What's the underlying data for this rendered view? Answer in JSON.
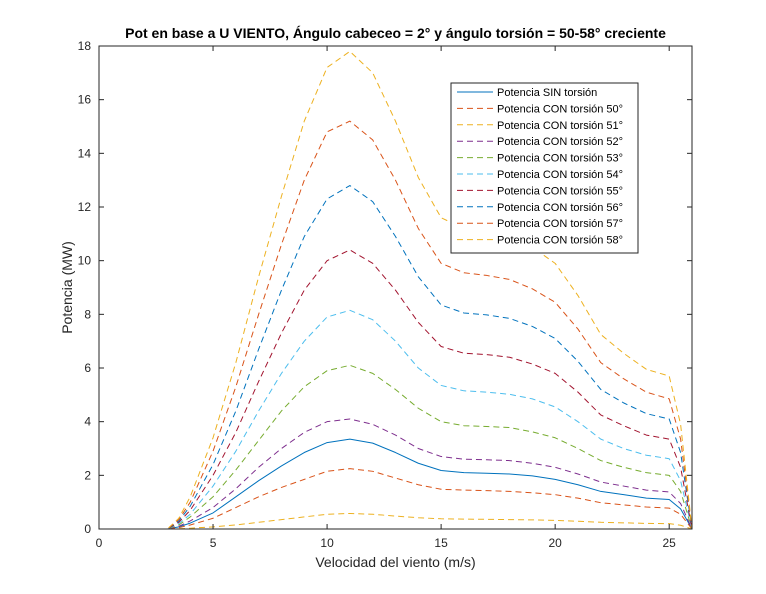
{
  "chart_data": {
    "type": "line",
    "title": "Pot en base a U VIENTO, Ángulo cabeceo = 2° y ángulo torsión = 50-58° creciente",
    "xlabel": "Velocidad del viento (m/s)",
    "ylabel": "Potencia (MW)",
    "xlim": [
      0,
      26
    ],
    "ylim": [
      0,
      18
    ],
    "xticks": [
      0,
      5,
      10,
      15,
      20,
      25
    ],
    "yticks": [
      0,
      2,
      4,
      6,
      8,
      10,
      12,
      14,
      16,
      18
    ],
    "grid": false,
    "legend_position": "top-right",
    "x": [
      0,
      1,
      2,
      3,
      3.5,
      4,
      5,
      6,
      7,
      8,
      9,
      10,
      11,
      12,
      13,
      14,
      15,
      16,
      17,
      18,
      19,
      20,
      21,
      22,
      23,
      24,
      25,
      25.5,
      26
    ],
    "series": [
      {
        "name": "Potencia SIN torsión",
        "color": "#0072BD",
        "dash": "solid",
        "values": [
          0,
          0,
          0,
          0,
          0.08,
          0.22,
          0.6,
          1.2,
          1.8,
          2.35,
          2.85,
          3.22,
          3.35,
          3.2,
          2.85,
          2.45,
          2.18,
          2.1,
          2.08,
          2.05,
          1.98,
          1.85,
          1.65,
          1.4,
          1.28,
          1.15,
          1.1,
          0.75,
          0
        ]
      },
      {
        "name": "Potencia CON torsión 50°",
        "color": "#D95319",
        "dash": "dashed",
        "values": [
          0,
          0,
          0,
          0,
          0.05,
          0.15,
          0.4,
          0.8,
          1.2,
          1.55,
          1.85,
          2.15,
          2.25,
          2.15,
          1.9,
          1.65,
          1.48,
          1.45,
          1.43,
          1.4,
          1.35,
          1.28,
          1.15,
          0.98,
          0.9,
          0.82,
          0.78,
          0.55,
          0
        ]
      },
      {
        "name": "Potencia CON torsión 51°",
        "color": "#EDB120",
        "dash": "dashed",
        "values": [
          0,
          0,
          0,
          0,
          0.01,
          0.03,
          0.08,
          0.15,
          0.25,
          0.35,
          0.45,
          0.55,
          0.58,
          0.55,
          0.48,
          0.42,
          0.38,
          0.37,
          0.36,
          0.35,
          0.34,
          0.32,
          0.29,
          0.25,
          0.23,
          0.21,
          0.2,
          0.14,
          0
        ]
      },
      {
        "name": "Potencia CON torsión 52°",
        "color": "#7E2F8E",
        "dash": "dashed",
        "values": [
          0,
          0,
          0,
          0,
          0.1,
          0.3,
          0.8,
          1.5,
          2.3,
          3.0,
          3.6,
          4.0,
          4.1,
          3.9,
          3.5,
          3.0,
          2.7,
          2.6,
          2.58,
          2.55,
          2.45,
          2.3,
          2.05,
          1.75,
          1.6,
          1.45,
          1.38,
          0.95,
          0
        ]
      },
      {
        "name": "Potencia CON torsión 53°",
        "color": "#77AC30",
        "dash": "dashed",
        "values": [
          0,
          0,
          0,
          0,
          0.15,
          0.45,
          1.2,
          2.2,
          3.3,
          4.4,
          5.3,
          5.9,
          6.1,
          5.8,
          5.2,
          4.5,
          4.0,
          3.85,
          3.82,
          3.78,
          3.62,
          3.4,
          3.0,
          2.55,
          2.3,
          2.1,
          2.0,
          1.4,
          0
        ]
      },
      {
        "name": "Potencia CON torsión 54°",
        "color": "#4DBEEE",
        "dash": "dashed",
        "values": [
          0,
          0,
          0,
          0,
          0.2,
          0.55,
          1.6,
          2.9,
          4.4,
          5.8,
          7.0,
          7.9,
          8.15,
          7.8,
          7.0,
          6.0,
          5.35,
          5.15,
          5.1,
          5.02,
          4.85,
          4.55,
          4.0,
          3.35,
          3.0,
          2.75,
          2.62,
          1.8,
          0
        ]
      },
      {
        "name": "Potencia CON torsión 55°",
        "color": "#A2142F",
        "dash": "dashed",
        "values": [
          0,
          0,
          0,
          0,
          0.25,
          0.7,
          2.0,
          3.6,
          5.5,
          7.3,
          8.9,
          10.0,
          10.4,
          9.9,
          8.9,
          7.7,
          6.8,
          6.55,
          6.5,
          6.4,
          6.15,
          5.8,
          5.1,
          4.25,
          3.85,
          3.5,
          3.35,
          2.3,
          0
        ]
      },
      {
        "name": "Potencia CON torsión 56°",
        "color": "#0072BD",
        "dash": "dashed",
        "values": [
          0,
          0,
          0,
          0,
          0.3,
          0.85,
          2.4,
          4.4,
          6.7,
          8.9,
          10.9,
          12.3,
          12.8,
          12.2,
          10.9,
          9.4,
          8.35,
          8.05,
          7.98,
          7.85,
          7.55,
          7.1,
          6.25,
          5.2,
          4.7,
          4.3,
          4.1,
          2.85,
          0
        ]
      },
      {
        "name": "Potencia CON torsión 57°",
        "color": "#D95319",
        "dash": "dashed",
        "values": [
          0,
          0,
          0,
          0,
          0.35,
          1.0,
          2.9,
          5.3,
          8.0,
          10.6,
          13.0,
          14.8,
          15.2,
          14.5,
          13.0,
          11.2,
          9.9,
          9.55,
          9.45,
          9.3,
          8.95,
          8.45,
          7.45,
          6.2,
          5.6,
          5.1,
          4.85,
          3.35,
          0
        ]
      },
      {
        "name": "Potencia CON torsión 58°",
        "color": "#EDB120",
        "dash": "dashed",
        "values": [
          0,
          0,
          0,
          0,
          0.4,
          1.2,
          3.4,
          6.2,
          9.4,
          12.4,
          15.2,
          17.2,
          17.8,
          17.0,
          15.2,
          13.1,
          11.6,
          11.2,
          11.05,
          10.9,
          10.5,
          9.9,
          8.7,
          7.25,
          6.55,
          5.95,
          5.7,
          3.9,
          0
        ]
      }
    ]
  }
}
